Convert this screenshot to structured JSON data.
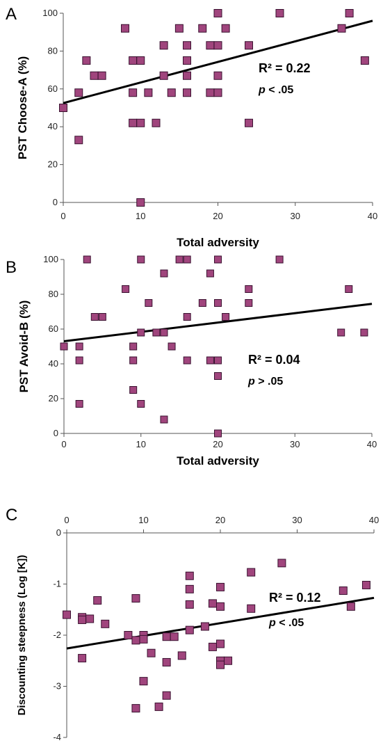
{
  "chart_data": [
    {
      "type": "scatter",
      "panel_label": "A",
      "xlabel": "Total adversity",
      "ylabel": "PST Choose-A (%)",
      "xlim": [
        0,
        40
      ],
      "ylim": [
        0,
        100
      ],
      "x_ticks": [
        0,
        10,
        20,
        30,
        40
      ],
      "y_ticks": [
        0,
        20,
        40,
        60,
        80,
        100
      ],
      "x_axis_position": "bottom",
      "marker_color": "#a0457d",
      "points": [
        [
          0,
          50
        ],
        [
          2,
          58
        ],
        [
          2,
          33
        ],
        [
          3,
          75
        ],
        [
          4,
          67
        ],
        [
          5,
          67
        ],
        [
          8,
          92
        ],
        [
          9,
          75
        ],
        [
          9,
          58
        ],
        [
          9,
          42
        ],
        [
          10,
          75
        ],
        [
          10,
          42
        ],
        [
          10,
          0
        ],
        [
          11,
          58
        ],
        [
          12,
          42
        ],
        [
          13,
          83
        ],
        [
          13,
          67
        ],
        [
          14,
          58
        ],
        [
          15,
          92
        ],
        [
          16,
          83
        ],
        [
          16,
          75
        ],
        [
          16,
          67
        ],
        [
          16,
          58
        ],
        [
          18,
          92
        ],
        [
          19,
          83
        ],
        [
          19,
          58
        ],
        [
          20,
          100
        ],
        [
          20,
          83
        ],
        [
          20,
          67
        ],
        [
          20,
          58
        ],
        [
          21,
          92
        ],
        [
          24,
          83
        ],
        [
          24,
          42
        ],
        [
          28,
          100
        ],
        [
          36,
          92
        ],
        [
          37,
          100
        ],
        [
          39,
          75
        ]
      ],
      "trendline": {
        "x": [
          0,
          40
        ],
        "y": [
          52.5,
          96
        ]
      },
      "annotation": {
        "r2": "R² = 0.22",
        "p_symbol": "p",
        "p_rest": " < .05"
      }
    },
    {
      "type": "scatter",
      "panel_label": "B",
      "xlabel": "Total adversity",
      "ylabel": "PST Avoid-B (%)",
      "xlim": [
        0,
        40
      ],
      "ylim": [
        0,
        100
      ],
      "x_ticks": [
        0,
        10,
        20,
        30,
        40
      ],
      "y_ticks": [
        0,
        20,
        40,
        60,
        80,
        100
      ],
      "x_axis_position": "bottom",
      "marker_color": "#a0457d",
      "points": [
        [
          0,
          50
        ],
        [
          2,
          50
        ],
        [
          2,
          42
        ],
        [
          2,
          17
        ],
        [
          3,
          100
        ],
        [
          4,
          67
        ],
        [
          5,
          67
        ],
        [
          8,
          83
        ],
        [
          9,
          50
        ],
        [
          9,
          42
        ],
        [
          9,
          25
        ],
        [
          10,
          100
        ],
        [
          10,
          58
        ],
        [
          10,
          17
        ],
        [
          11,
          75
        ],
        [
          12,
          58
        ],
        [
          13,
          92
        ],
        [
          13,
          58
        ],
        [
          13,
          8
        ],
        [
          14,
          50
        ],
        [
          15,
          100
        ],
        [
          16,
          100
        ],
        [
          16,
          67
        ],
        [
          16,
          42
        ],
        [
          18,
          75
        ],
        [
          19,
          92
        ],
        [
          19,
          42
        ],
        [
          20,
          100
        ],
        [
          20,
          75
        ],
        [
          20,
          42
        ],
        [
          20,
          33
        ],
        [
          20,
          0
        ],
        [
          21,
          67
        ],
        [
          24,
          83
        ],
        [
          24,
          75
        ],
        [
          28,
          100
        ],
        [
          36,
          58
        ],
        [
          37,
          83
        ],
        [
          39,
          58
        ]
      ],
      "trendline": {
        "x": [
          0,
          40
        ],
        "y": [
          53,
          74.5
        ]
      },
      "annotation": {
        "r2": "R² = 0.04",
        "p_symbol": "p",
        "p_rest": " > .05"
      }
    },
    {
      "type": "scatter",
      "panel_label": "C",
      "xlabel": "",
      "ylabel": "Discounting steepness (Log [K])",
      "xlim": [
        0,
        40
      ],
      "ylim": [
        -4,
        0
      ],
      "x_ticks": [
        0,
        10,
        20,
        30,
        40
      ],
      "y_ticks": [
        -4,
        -3,
        -2,
        -1,
        0
      ],
      "x_axis_position": "top",
      "marker_color": "#a0457d",
      "points": [
        [
          0,
          -1.6
        ],
        [
          2,
          -1.65
        ],
        [
          2,
          -1.7
        ],
        [
          2,
          -2.45
        ],
        [
          3,
          -1.68
        ],
        [
          4,
          -1.32
        ],
        [
          5,
          -1.78
        ],
        [
          8,
          -2.0
        ],
        [
          9,
          -2.1
        ],
        [
          9,
          -3.43
        ],
        [
          9,
          -1.28
        ],
        [
          10,
          -2.0
        ],
        [
          10,
          -2.08
        ],
        [
          10,
          -2.9
        ],
        [
          11,
          -2.35
        ],
        [
          12,
          -3.4
        ],
        [
          13,
          -2.03
        ],
        [
          13,
          -2.53
        ],
        [
          13,
          -3.18
        ],
        [
          14,
          -2.03
        ],
        [
          15,
          -2.4
        ],
        [
          16,
          -0.84
        ],
        [
          16,
          -1.1
        ],
        [
          16,
          -1.4
        ],
        [
          16,
          -1.9
        ],
        [
          18,
          -1.83
        ],
        [
          19,
          -1.38
        ],
        [
          19,
          -2.23
        ],
        [
          20,
          -1.06
        ],
        [
          20,
          -1.44
        ],
        [
          20,
          -2.17
        ],
        [
          20,
          -2.5
        ],
        [
          20,
          -2.58
        ],
        [
          21,
          -2.5
        ],
        [
          24,
          -0.77
        ],
        [
          24,
          -1.48
        ],
        [
          28,
          -0.59
        ],
        [
          36,
          -1.13
        ],
        [
          37,
          -1.44
        ],
        [
          39,
          -1.02
        ]
      ],
      "trendline": {
        "x": [
          0,
          40
        ],
        "y": [
          -2.26,
          -1.27
        ]
      },
      "annotation": {
        "r2": "R² = 0.12",
        "p_symbol": "p",
        "p_rest": " < .05"
      }
    }
  ]
}
